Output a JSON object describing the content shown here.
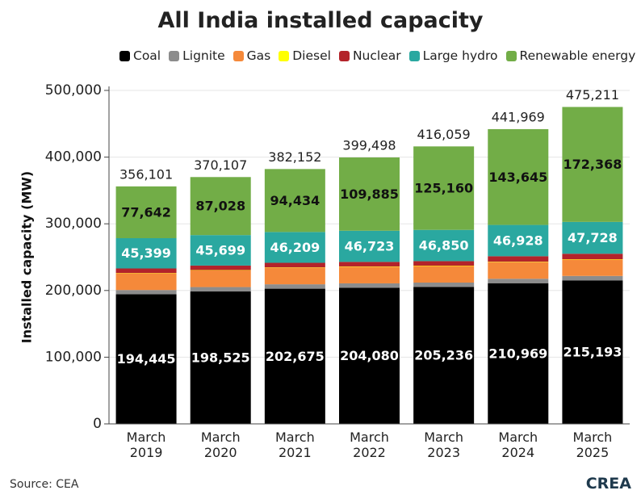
{
  "chart_data": {
    "type": "stacked_bar",
    "title": "All India installed capacity",
    "y_label": "Installed capacity (MW)",
    "categories": [
      "March 2019",
      "March 2020",
      "March 2021",
      "March 2022",
      "March 2023",
      "March 2024",
      "March 2025"
    ],
    "series": [
      {
        "name": "Coal",
        "color": "#000000",
        "label_color": "#ffffff",
        "values": [
          194445,
          198525,
          202675,
          204080,
          205236,
          210969,
          215193
        ],
        "value_labels": [
          "194,445",
          "198,525",
          "202,675",
          "204,080",
          "205,236",
          "210,969",
          "215,193"
        ]
      },
      {
        "name": "Lignite",
        "color": "#8c8c8c",
        "values": [
          6260,
          6610,
          6620,
          6620,
          6620,
          6620,
          6620
        ]
      },
      {
        "name": "Gas",
        "color": "#f5893a",
        "values": [
          25065,
          24955,
          24924,
          24900,
          24824,
          25038,
          24533
        ]
      },
      {
        "name": "Diesel",
        "color": "#ffff00",
        "values": [
          510,
          510,
          510,
          510,
          589,
          589,
          589
        ]
      },
      {
        "name": "Nuclear",
        "color": "#b3232a",
        "values": [
          6780,
          6780,
          6780,
          6780,
          6780,
          8180,
          8180
        ]
      },
      {
        "name": "Large hydro",
        "color": "#2aa8a0",
        "label_color": "#ffffff",
        "values": [
          45399,
          45699,
          46209,
          46723,
          46850,
          46928,
          47728
        ],
        "value_labels": [
          "45,399",
          "45,699",
          "46,209",
          "46,723",
          "46,850",
          "46,928",
          "47,728"
        ]
      },
      {
        "name": "Renewable energy",
        "color": "#72ad47",
        "label_color": "#111111",
        "values": [
          77642,
          87028,
          94434,
          109885,
          125160,
          143645,
          172368
        ],
        "value_labels": [
          "77,642",
          "87,028",
          "94,434",
          "109,885",
          "125,160",
          "143,645",
          "172,368"
        ]
      }
    ],
    "totals": [
      356101,
      370107,
      382152,
      399498,
      416059,
      441969,
      475211
    ],
    "total_labels": [
      "356,101",
      "370,107",
      "382,152",
      "399,498",
      "416,059",
      "441,969",
      "475,211"
    ],
    "ylim": [
      0,
      500000
    ],
    "yticks": [
      {
        "value": 0,
        "label": "0"
      },
      {
        "value": 100000,
        "label": "100,000"
      },
      {
        "value": 200000,
        "label": "200,000"
      },
      {
        "value": 300000,
        "label": "300,000"
      },
      {
        "value": 400000,
        "label": "400,000"
      },
      {
        "value": 500000,
        "label": "500,000"
      }
    ],
    "grid": true
  },
  "source": "Source: CEA",
  "logo": "CREA"
}
